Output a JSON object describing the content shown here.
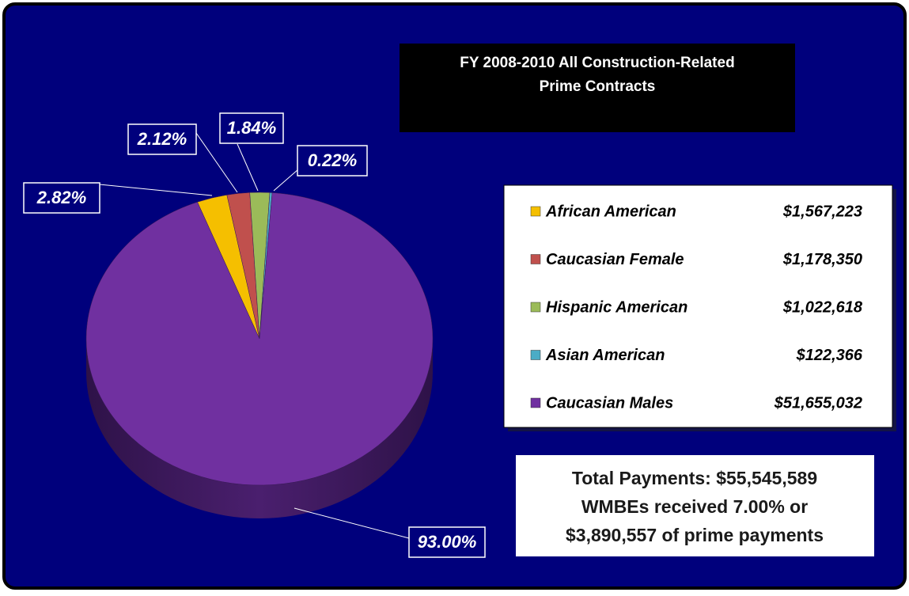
{
  "chart_data": {
    "type": "pie",
    "title": [
      "FY 2008-2010 All Construction-Related",
      "Prime Contracts"
    ],
    "categories": [
      "African American",
      "Caucasian Female",
      "Hispanic American",
      "Asian American",
      "Caucasian Males"
    ],
    "values": [
      2.82,
      2.12,
      1.84,
      0.22,
      93.0
    ],
    "value_labels": [
      "2.82%",
      "2.12%",
      "1.84%",
      "0.22%",
      "93.00%"
    ],
    "legend_values": [
      "$1,567,223",
      "$1,178,350",
      "$1,022,618",
      "$122,366",
      "$51,655,032"
    ],
    "colors": [
      "#f5bf00",
      "#c0504d",
      "#9bbb59",
      "#4bacc6",
      "#7030a0"
    ],
    "annotation": [
      "Total Payments: $55,545,589",
      "WMBEs received 7.00% or",
      "$3,890,557 of prime payments"
    ],
    "legend": "right"
  }
}
